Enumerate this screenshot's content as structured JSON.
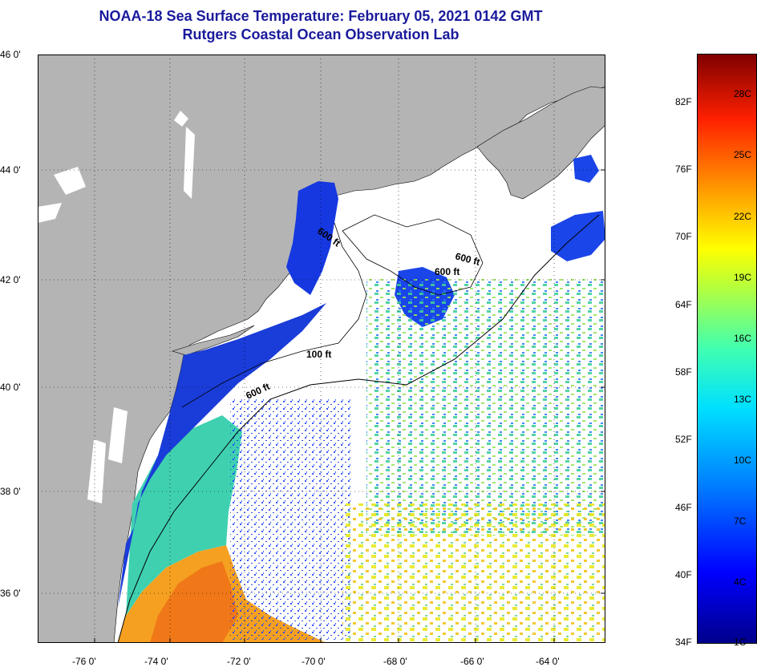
{
  "title": "NOAA-18 Sea Surface Temperature:  February 05, 2021 0142 GMT",
  "subtitle": "Rutgers Coastal Ocean Observation Lab",
  "lat_labels": [
    "46 0'",
    "44 0'",
    "42 0'",
    "40 0'",
    "38 0'",
    "36 0'"
  ],
  "lon_labels": [
    "-76 0'",
    "-74 0'",
    "-72 0'",
    "-70 0'",
    "-68 0'",
    "-66 0'",
    "-64 0'"
  ],
  "contour_labels": [
    "600 ft",
    "100 ft",
    "600 ft",
    "600 ft",
    "600 ft"
  ],
  "colorbar": {
    "fahrenheit": [
      "82F",
      "76F",
      "70F",
      "64F",
      "58F",
      "52F",
      "46F",
      "40F",
      "34F"
    ],
    "celsius": [
      "28C",
      "25C",
      "22C",
      "19C",
      "16C",
      "13C",
      "10C",
      "7C",
      "4C",
      "1C"
    ]
  },
  "colors": {
    "land": "#b4b4b4",
    "title": "#1a1a9c",
    "coldest": "#00008b",
    "warmest": "#800000"
  }
}
